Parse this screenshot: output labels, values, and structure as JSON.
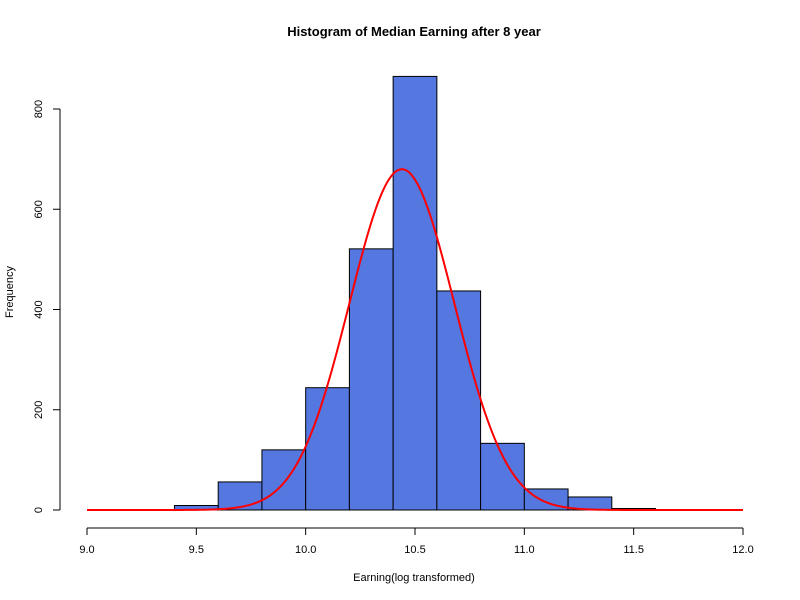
{
  "chart_data": {
    "type": "bar",
    "title": "Histogram of Median Earning after 8 year",
    "xlabel": "Earning(log transformed)",
    "ylabel": "Frequency",
    "xlim": [
      9.0,
      12.0
    ],
    "ylim": [
      0,
      800
    ],
    "x_ticks": [
      "9.0",
      "9.5",
      "10.0",
      "10.5",
      "11.0",
      "11.5",
      "12.0"
    ],
    "y_ticks": [
      "0",
      "200",
      "400",
      "600",
      "800"
    ],
    "bin_width": 0.2,
    "bins": [
      {
        "start": 9.4,
        "end": 9.6,
        "count": 9
      },
      {
        "start": 9.6,
        "end": 9.8,
        "count": 56
      },
      {
        "start": 9.8,
        "end": 10.0,
        "count": 120
      },
      {
        "start": 10.0,
        "end": 10.2,
        "count": 244
      },
      {
        "start": 10.2,
        "end": 10.4,
        "count": 521
      },
      {
        "start": 10.4,
        "end": 10.6,
        "count": 865
      },
      {
        "start": 10.6,
        "end": 10.8,
        "count": 437
      },
      {
        "start": 10.8,
        "end": 11.0,
        "count": 133
      },
      {
        "start": 11.0,
        "end": 11.2,
        "count": 42
      },
      {
        "start": 11.2,
        "end": 11.4,
        "count": 26
      },
      {
        "start": 11.4,
        "end": 11.6,
        "count": 3
      }
    ],
    "density_curve": {
      "type": "line",
      "mean": 10.44,
      "sd": 0.24,
      "peak": 680,
      "color": "#ff0000"
    },
    "bar_color": "#5577e0",
    "grid": false
  }
}
